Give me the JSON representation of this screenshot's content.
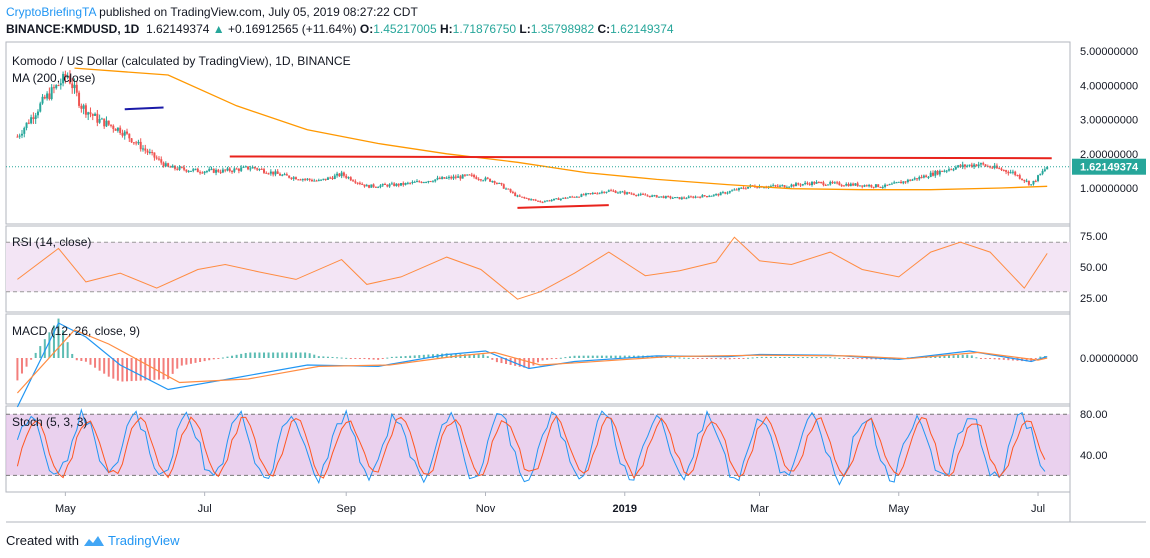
{
  "header": {
    "publisher": "CryptoBriefingTA",
    "published_text": "published on TradingView.com, July 05, 2019 08:27:22 CDT",
    "symbol": "BINANCE:KMDUSD, 1D",
    "last": "1.62149374",
    "change": "+0.16912565 (+11.64%)",
    "o_label": "O:",
    "o_value": "1.45217005",
    "h_label": "H:",
    "h_value": "1.71876750",
    "l_label": "L:",
    "l_value": "1.35798982",
    "c_label": "C:",
    "c_value": "1.62149374"
  },
  "footer": {
    "created_with": "Created with",
    "brand": "TradingView"
  },
  "colors": {
    "up": "#26a69a",
    "down": "#ef5350",
    "ma": "#ff9800",
    "rsi": "#ff8c42",
    "macd": "#2196f3",
    "signal": "#ff8c42",
    "stoch_k": "#2196f3",
    "stoch_d": "#ff5722",
    "resistance": "#e8231c",
    "trend": "#1a1aa8",
    "rsi_band": "#f3e5f5",
    "stoch_band": "#e1bee7"
  },
  "chart_data": [
    {
      "type": "candlestick",
      "title": "Komodo / US Dollar (calculated by TradingView), 1D, BINANCE",
      "indicator": "MA (200, close)",
      "y_ticks": [
        "5.00000000",
        "4.00000000",
        "3.00000000",
        "2.00000000",
        "1.00000000"
      ],
      "last_price_label": "1.62149374",
      "x_ticks": [
        "May",
        "Jul",
        "Sep",
        "Nov",
        "2019",
        "Mar",
        "May",
        "Jul"
      ],
      "price_path": [
        [
          "2018-04-10",
          2.5
        ],
        [
          "2018-04-22",
          3.6
        ],
        [
          "2018-05-02",
          4.3
        ],
        [
          "2018-05-08",
          3.4
        ],
        [
          "2018-05-15",
          3.0
        ],
        [
          "2018-05-25",
          2.7
        ],
        [
          "2018-06-05",
          2.1
        ],
        [
          "2018-06-15",
          1.6
        ],
        [
          "2018-06-28",
          1.5
        ],
        [
          "2018-07-10",
          1.5
        ],
        [
          "2018-07-22",
          1.6
        ],
        [
          "2018-08-05",
          1.35
        ],
        [
          "2018-08-20",
          1.2
        ],
        [
          "2018-08-30",
          1.4
        ],
        [
          "2018-09-10",
          1.05
        ],
        [
          "2018-09-25",
          1.1
        ],
        [
          "2018-10-10",
          1.25
        ],
        [
          "2018-10-25",
          1.35
        ],
        [
          "2018-11-05",
          1.2
        ],
        [
          "2018-11-15",
          0.75
        ],
        [
          "2018-11-25",
          0.6
        ],
        [
          "2018-12-10",
          0.75
        ],
        [
          "2018-12-25",
          0.92
        ],
        [
          "2019-01-10",
          0.78
        ],
        [
          "2019-01-25",
          0.7
        ],
        [
          "2019-02-10",
          0.8
        ],
        [
          "2019-02-25",
          1.05
        ],
        [
          "2019-03-10",
          1.05
        ],
        [
          "2019-03-25",
          1.15
        ],
        [
          "2019-04-10",
          1.1
        ],
        [
          "2019-04-25",
          1.05
        ],
        [
          "2019-05-10",
          1.3
        ],
        [
          "2019-05-25",
          1.6
        ],
        [
          "2019-06-05",
          1.7
        ],
        [
          "2019-06-20",
          1.45
        ],
        [
          "2019-06-28",
          1.1
        ],
        [
          "2019-07-05",
          1.62
        ]
      ],
      "ma_path": [
        [
          "2018-05-05",
          4.5
        ],
        [
          "2018-06-15",
          4.3
        ],
        [
          "2018-07-15",
          3.4
        ],
        [
          "2018-08-15",
          2.7
        ],
        [
          "2018-09-15",
          2.3
        ],
        [
          "2018-10-15",
          2.0
        ],
        [
          "2018-11-15",
          1.75
        ],
        [
          "2018-12-15",
          1.45
        ],
        [
          "2019-01-15",
          1.25
        ],
        [
          "2019-02-15",
          1.1
        ],
        [
          "2019-03-15",
          0.98
        ],
        [
          "2019-04-15",
          0.95
        ],
        [
          "2019-05-15",
          0.95
        ],
        [
          "2019-06-15",
          1.0
        ],
        [
          "2019-07-05",
          1.05
        ]
      ],
      "annotations": [
        {
          "kind": "resistance",
          "from": [
            "2018-07-12",
            1.92
          ],
          "to": [
            "2019-07-07",
            1.87
          ]
        },
        {
          "kind": "support",
          "from": [
            "2018-11-15",
            0.42
          ],
          "to": [
            "2018-12-25",
            0.5
          ]
        },
        {
          "kind": "trend",
          "from": [
            "2018-05-27",
            3.3
          ],
          "to": [
            "2018-06-13",
            3.35
          ]
        }
      ]
    },
    {
      "type": "line",
      "title": "RSI (14, close)",
      "y_ticks": [
        "75.00",
        "50.00",
        "25.00"
      ],
      "band": [
        30,
        70
      ],
      "series": [
        {
          "path": [
            [
              "2018-04-10",
              40
            ],
            [
              "2018-04-28",
              65
            ],
            [
              "2018-05-10",
              38
            ],
            [
              "2018-05-25",
              45
            ],
            [
              "2018-06-10",
              33
            ],
            [
              "2018-06-28",
              48
            ],
            [
              "2018-07-10",
              52
            ],
            [
              "2018-07-25",
              46
            ],
            [
              "2018-08-10",
              40
            ],
            [
              "2018-08-30",
              56
            ],
            [
              "2018-09-10",
              36
            ],
            [
              "2018-09-25",
              42
            ],
            [
              "2018-10-15",
              58
            ],
            [
              "2018-10-30",
              48
            ],
            [
              "2018-11-15",
              24
            ],
            [
              "2018-11-25",
              30
            ],
            [
              "2018-12-10",
              45
            ],
            [
              "2018-12-25",
              62
            ],
            [
              "2019-01-10",
              43
            ],
            [
              "2019-01-25",
              47
            ],
            [
              "2019-02-10",
              54
            ],
            [
              "2019-02-18",
              74
            ],
            [
              "2019-03-01",
              55
            ],
            [
              "2019-03-15",
              52
            ],
            [
              "2019-04-01",
              62
            ],
            [
              "2019-04-15",
              48
            ],
            [
              "2019-05-01",
              42
            ],
            [
              "2019-05-15",
              62
            ],
            [
              "2019-05-28",
              70
            ],
            [
              "2019-06-10",
              62
            ],
            [
              "2019-06-25",
              33
            ],
            [
              "2019-07-05",
              61
            ]
          ]
        }
      ]
    },
    {
      "type": "bar+line",
      "title": "MACD (12, 26, close, 9)",
      "y_ticks": [
        "0.00000000"
      ],
      "series": [
        {
          "path": [
            [
              "2018-04-10",
              -0.7
            ],
            [
              "2018-04-28",
              0.5
            ],
            [
              "2018-05-10",
              0.3
            ],
            [
              "2018-05-25",
              -0.1
            ],
            [
              "2018-06-15",
              -0.45
            ],
            [
              "2018-07-15",
              -0.28
            ],
            [
              "2018-08-15",
              -0.1
            ],
            [
              "2018-09-15",
              -0.12
            ],
            [
              "2018-10-15",
              0.05
            ],
            [
              "2018-11-01",
              0.1
            ],
            [
              "2018-11-20",
              -0.15
            ],
            [
              "2018-12-10",
              -0.05
            ],
            [
              "2019-01-15",
              0.03
            ],
            [
              "2019-02-15",
              0.02
            ],
            [
              "2019-03-01",
              0.05
            ],
            [
              "2019-04-01",
              0.04
            ],
            [
              "2019-05-01",
              -0.02
            ],
            [
              "2019-06-01",
              0.1
            ],
            [
              "2019-06-28",
              -0.05
            ],
            [
              "2019-07-05",
              0.02
            ]
          ]
        },
        {
          "path": [
            [
              "2018-04-10",
              -0.5
            ],
            [
              "2018-05-05",
              0.4
            ],
            [
              "2018-05-20",
              0.2
            ],
            [
              "2018-06-20",
              -0.35
            ],
            [
              "2018-07-20",
              -0.3
            ],
            [
              "2018-08-20",
              -0.12
            ],
            [
              "2018-09-20",
              -0.1
            ],
            [
              "2018-10-20",
              0.03
            ],
            [
              "2018-11-05",
              0.08
            ],
            [
              "2018-11-25",
              -0.1
            ],
            [
              "2018-12-15",
              -0.06
            ],
            [
              "2019-01-20",
              0.02
            ],
            [
              "2019-03-01",
              0.04
            ],
            [
              "2019-04-10",
              0.03
            ],
            [
              "2019-05-05",
              -0.01
            ],
            [
              "2019-06-05",
              0.08
            ],
            [
              "2019-07-01",
              -0.03
            ],
            [
              "2019-07-05",
              0.0
            ]
          ]
        }
      ]
    },
    {
      "type": "line",
      "title": "Stoch (5, 3, 3)",
      "y_ticks": [
        "80.00",
        "40.00"
      ],
      "band": [
        20,
        80
      ]
    }
  ]
}
